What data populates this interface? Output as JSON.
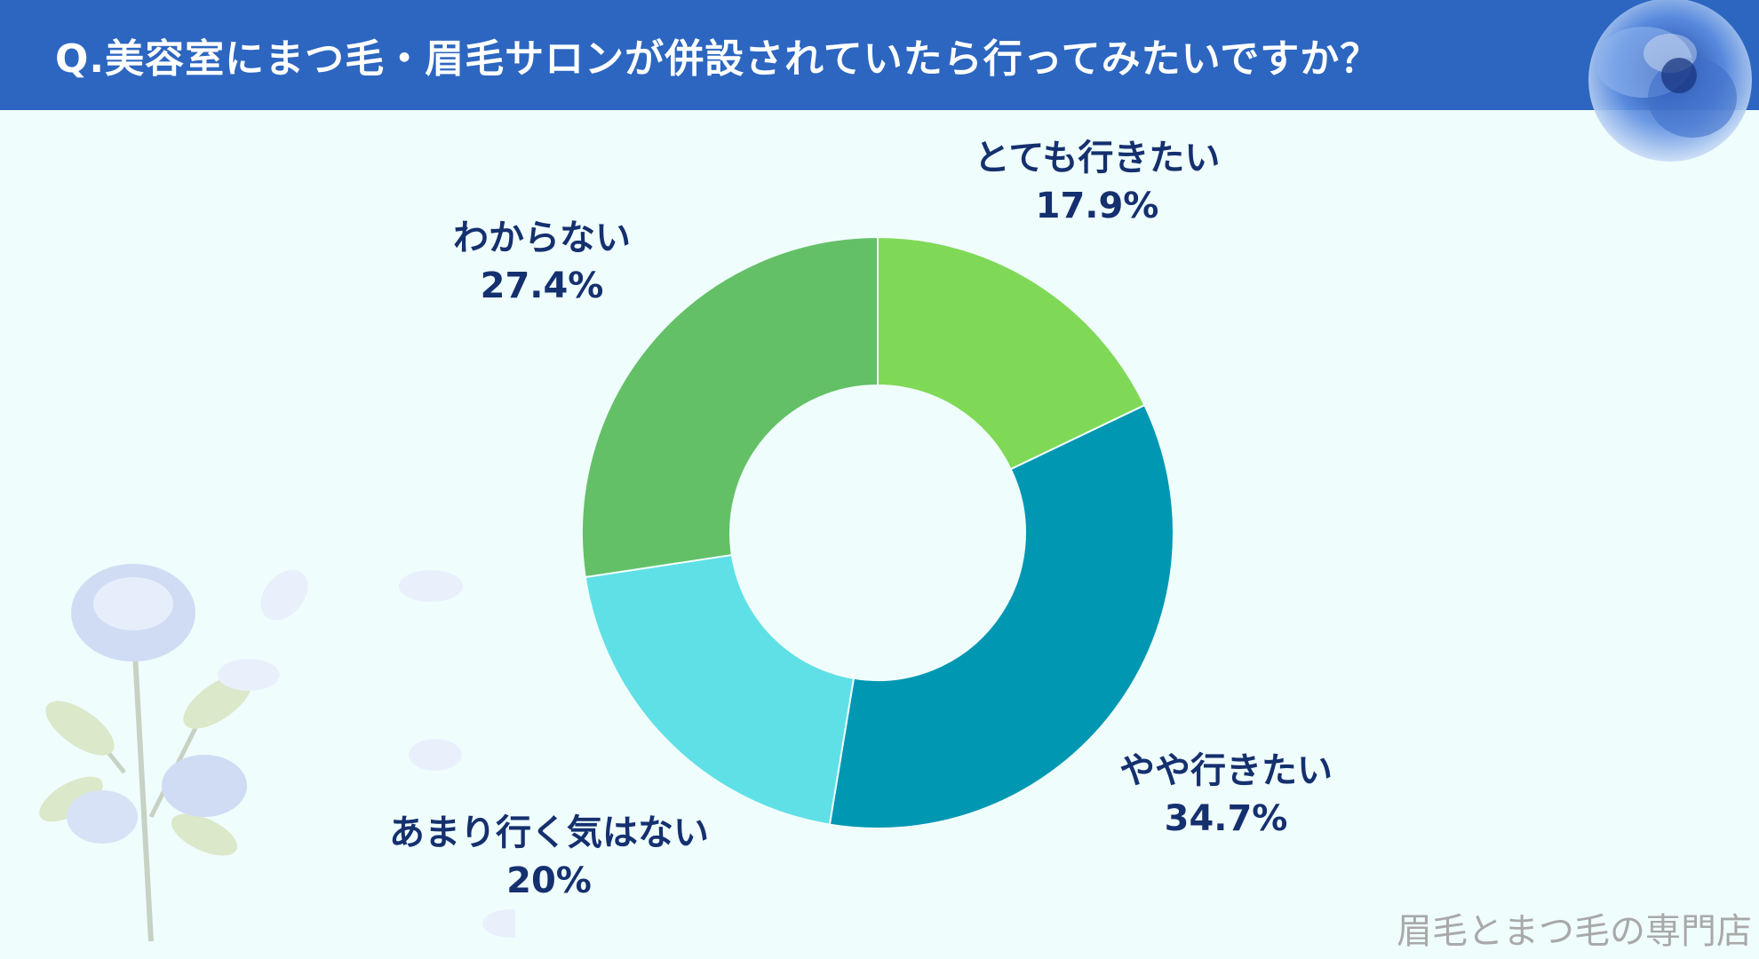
{
  "header": {
    "title": "Q.美容室にまつ毛・眉毛サロンが併設されていたら行ってみたいですか？"
  },
  "watermark": "眉毛とまつ毛の専門店",
  "chart_data": {
    "type": "pie",
    "donut": true,
    "start": "top",
    "direction": "clockwise",
    "slices": [
      {
        "label": "とても行きたい",
        "value_text": "17.9%",
        "value": 17.9,
        "color": "#7fd957"
      },
      {
        "label": "やや行きたい",
        "value_text": "34.7%",
        "value": 34.7,
        "color": "#0097b2"
      },
      {
        "label": "あまり行く気はない",
        "value_text": "20%",
        "value": 20.0,
        "color": "#5fe0e6"
      },
      {
        "label": "わからない",
        "value_text": "27.4%",
        "value": 27.4,
        "color": "#63c066"
      }
    ]
  }
}
